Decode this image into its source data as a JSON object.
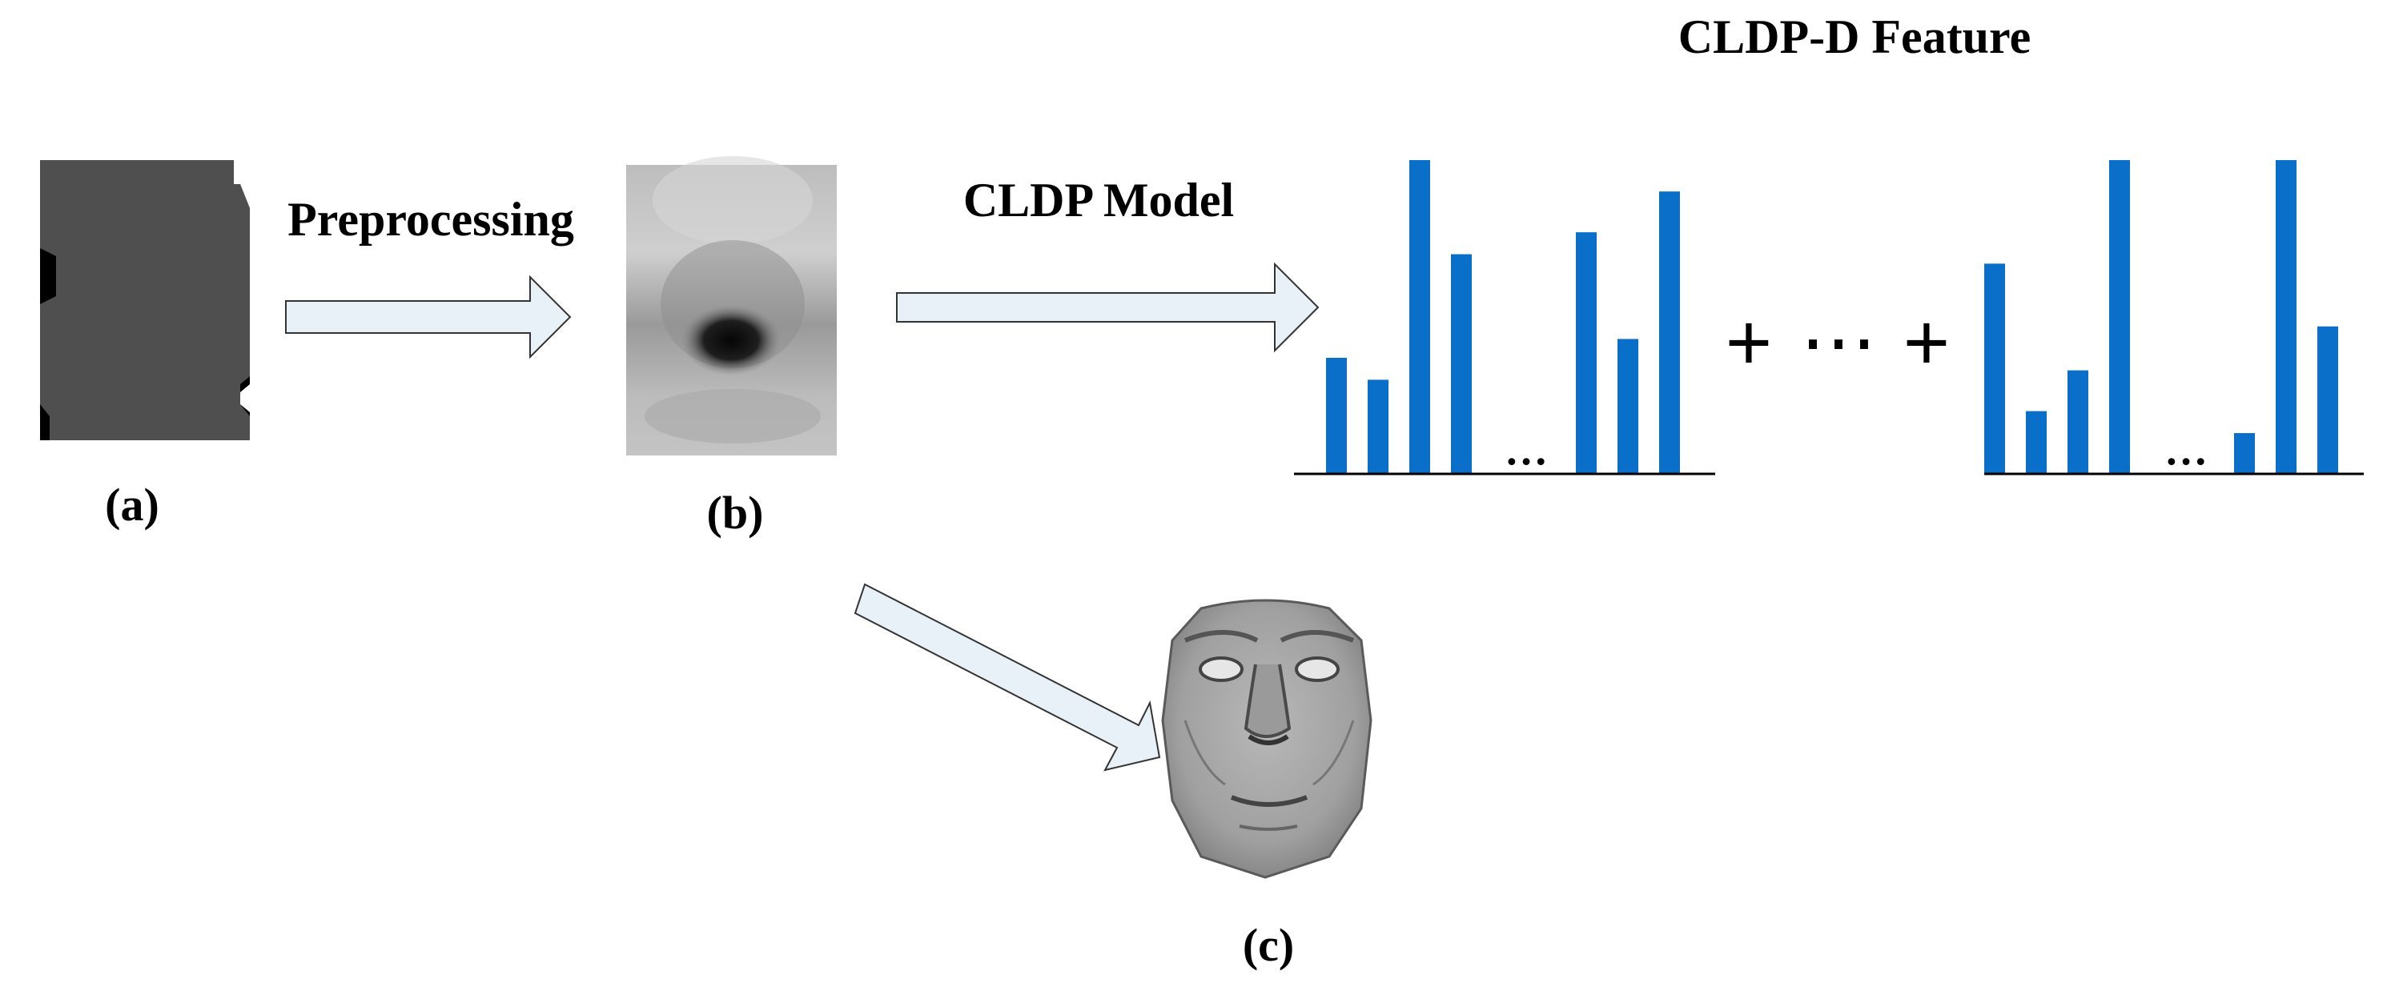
{
  "labels": {
    "title": "CLDP-D Feature",
    "preprocessing": "Preprocessing",
    "model": "CLDP Model",
    "a": "(a)",
    "b": "(b)",
    "c": "(c)"
  },
  "histogram": {
    "ellipsis": "…",
    "plus": "+",
    "dots": "⋯",
    "left_values": [
      0.37,
      0.3,
      1.0,
      0.7,
      0.77,
      0.43,
      0.9
    ],
    "right_values": [
      0.67,
      0.2,
      0.33,
      1.0,
      0.13,
      1.0,
      0.47
    ]
  },
  "colors": {
    "bar": "#0a6fc9",
    "arrow_fill": "#e8f0f8",
    "arrow_stroke": "#333333",
    "depth_map": "#4d4d4d",
    "depth_bg": "#000000"
  },
  "icons": {
    "depth_image": "depth-map-image",
    "processed_image": "processed-face-image",
    "face_mesh": "3d-face-mesh-image"
  }
}
